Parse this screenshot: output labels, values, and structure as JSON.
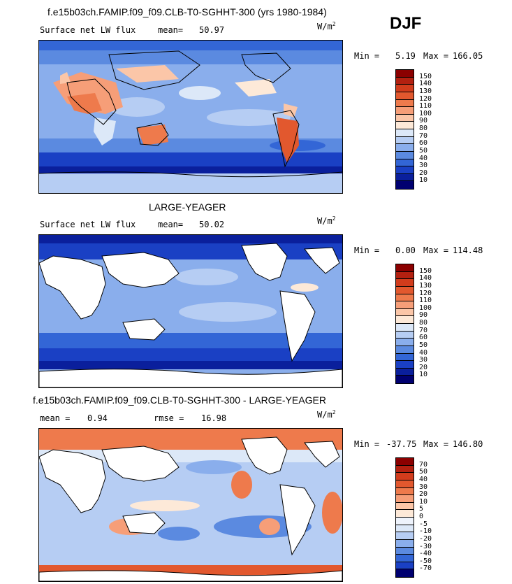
{
  "season": "DJF",
  "panels": [
    {
      "title": "f.e15b03ch.FAMIP.f09_f09.CLB-T0-SGHHT-300 (yrs 1980-1984)",
      "variable": "Surface net LW flux",
      "stat_label": "mean=",
      "stat_value": "50.97",
      "units": "W/m",
      "units_exp": "2",
      "min_label": "Min =",
      "min_value": "5.19",
      "max_label": "Max =",
      "max_value": "166.05",
      "levels": [
        "150",
        "140",
        "130",
        "120",
        "110",
        "100",
        "90",
        "80",
        "70",
        "60",
        "50",
        "40",
        "30",
        "20",
        "10"
      ]
    },
    {
      "title": "LARGE-YEAGER",
      "variable": "Surface net LW flux",
      "stat_label": "mean=",
      "stat_value": "50.02",
      "units": "W/m",
      "units_exp": "2",
      "min_label": "Min =",
      "min_value": "0.00",
      "max_label": "Max =",
      "max_value": "114.48",
      "levels": [
        "150",
        "140",
        "130",
        "120",
        "110",
        "100",
        "90",
        "80",
        "70",
        "60",
        "50",
        "40",
        "30",
        "20",
        "10"
      ]
    },
    {
      "title": "f.e15b03ch.FAMIP.f09_f09.CLB-T0-SGHHT-300 - LARGE-YEAGER",
      "stat_label": "mean =",
      "stat_value": "0.94",
      "rmse_label": "rmse =",
      "rmse_value": "16.98",
      "units": "W/m",
      "units_exp": "2",
      "min_label": "Min =",
      "min_value": "-37.75",
      "max_label": "Max =",
      "max_value": "146.80",
      "levels": [
        "70",
        "50",
        "40",
        "30",
        "20",
        "10",
        "5",
        "0",
        "-5",
        "-10",
        "-20",
        "-30",
        "-40",
        "-50",
        "-70"
      ]
    }
  ],
  "colors": {
    "abs_scale": [
      "#8b0000",
      "#b32010",
      "#d23c1c",
      "#e2582e",
      "#ee7a4c",
      "#f69e78",
      "#fbc6a8",
      "#fde9d8",
      "#dce8f8",
      "#b6cdf3",
      "#8aaeec",
      "#5b8ae0",
      "#3366d6",
      "#1a40c4",
      "#0a1f9c",
      "#000070"
    ],
    "diff_scale": [
      "#8b0000",
      "#b32010",
      "#d23c1c",
      "#e2582e",
      "#ee7a4c",
      "#f69e78",
      "#fbc6a8",
      "#fde9d8",
      "#eef3fc",
      "#dce8f8",
      "#b6cdf3",
      "#8aaeec",
      "#5b8ae0",
      "#3366d6",
      "#1a40c4",
      "#000070"
    ],
    "land": "#ffffff",
    "coast": "#000000"
  }
}
